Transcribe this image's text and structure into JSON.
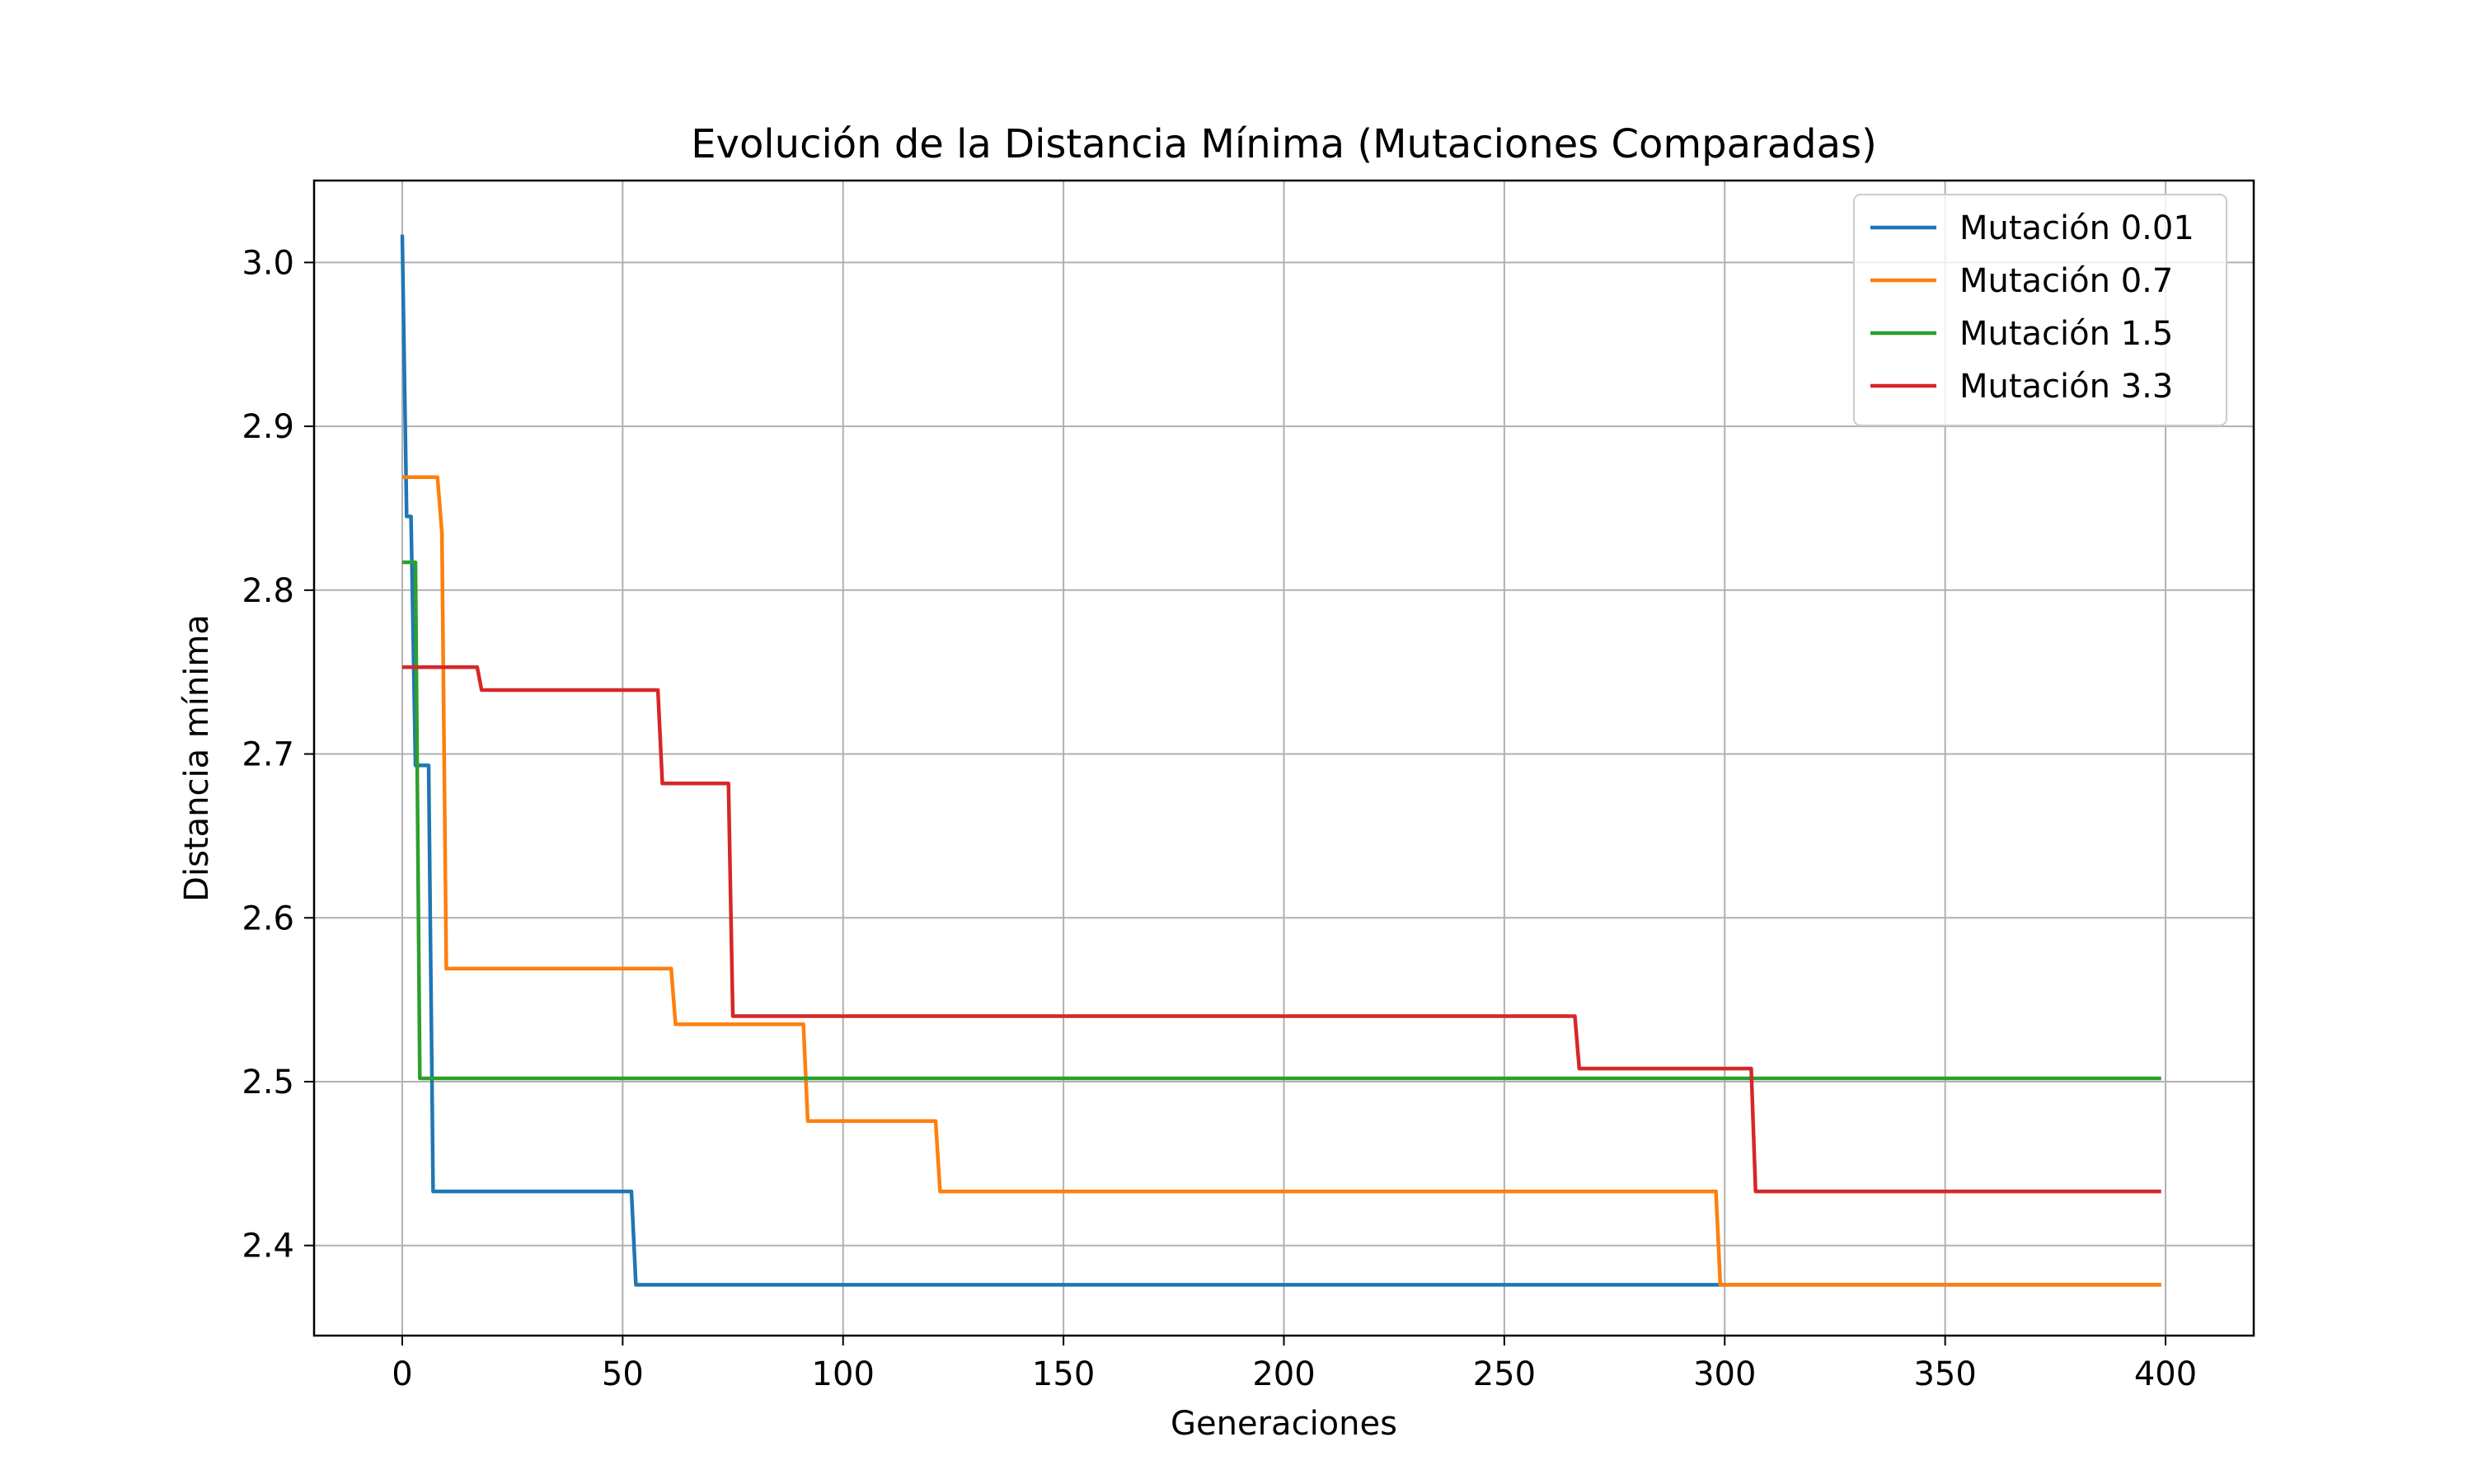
{
  "chart_data": {
    "type": "line",
    "title": "Evolución de la Distancia Mínima (Mutaciones Comparadas)",
    "xlabel": "Generaciones",
    "ylabel": "Distancia mínima",
    "xlim": [
      -20,
      420
    ],
    "ylim": [
      2.345,
      3.05
    ],
    "xticks": [
      0,
      50,
      100,
      150,
      200,
      250,
      300,
      350,
      400
    ],
    "xtick_labels": [
      "0",
      "50",
      "100",
      "150",
      "200",
      "250",
      "300",
      "350",
      "400"
    ],
    "yticks": [
      2.4,
      2.5,
      2.6,
      2.7,
      2.8,
      2.9,
      3.0
    ],
    "ytick_labels": [
      "2.4",
      "2.5",
      "2.6",
      "2.7",
      "2.8",
      "2.9",
      "3.0"
    ],
    "grid": true,
    "legend_position": "top-right",
    "series": [
      {
        "name": "Mutación 0.01",
        "color": "#1f77b4",
        "points": [
          [
            0,
            3.017
          ],
          [
            1,
            2.845
          ],
          [
            2,
            2.845
          ],
          [
            3,
            2.693
          ],
          [
            6,
            2.693
          ],
          [
            7,
            2.433
          ],
          [
            52,
            2.433
          ],
          [
            53,
            2.376
          ],
          [
            399,
            2.376
          ]
        ]
      },
      {
        "name": "Mutación 0.7",
        "color": "#ff7f0e",
        "points": [
          [
            0,
            2.869
          ],
          [
            8,
            2.869
          ],
          [
            9,
            2.835
          ],
          [
            10,
            2.569
          ],
          [
            61,
            2.569
          ],
          [
            62,
            2.535
          ],
          [
            91,
            2.535
          ],
          [
            92,
            2.476
          ],
          [
            121,
            2.476
          ],
          [
            122,
            2.433
          ],
          [
            298,
            2.433
          ],
          [
            299,
            2.376
          ],
          [
            399,
            2.376
          ]
        ]
      },
      {
        "name": "Mutación 1.5",
        "color": "#2ca02c",
        "points": [
          [
            0,
            2.817
          ],
          [
            3,
            2.817
          ],
          [
            4,
            2.502
          ],
          [
            399,
            2.502
          ]
        ]
      },
      {
        "name": "Mutación 3.3",
        "color": "#d62728",
        "points": [
          [
            0,
            2.753
          ],
          [
            17,
            2.753
          ],
          [
            18,
            2.739
          ],
          [
            58,
            2.739
          ],
          [
            59,
            2.682
          ],
          [
            74,
            2.682
          ],
          [
            75,
            2.54
          ],
          [
            266,
            2.54
          ],
          [
            267,
            2.508
          ],
          [
            306,
            2.508
          ],
          [
            307,
            2.433
          ],
          [
            399,
            2.433
          ]
        ]
      }
    ]
  }
}
